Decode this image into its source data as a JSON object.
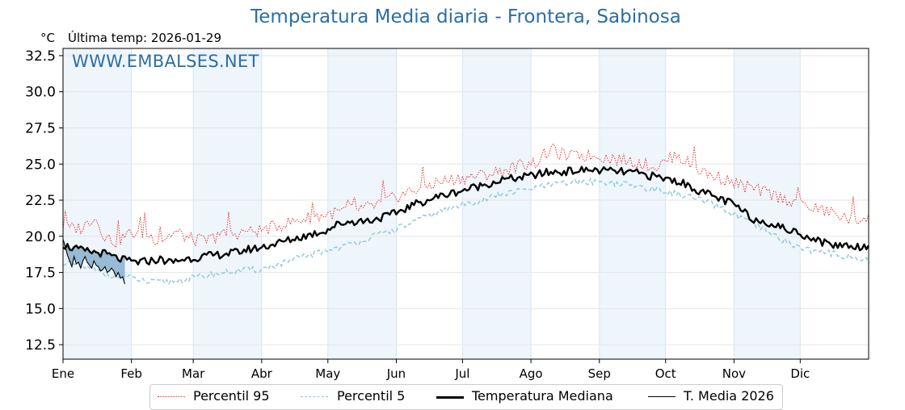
{
  "header": {
    "title": "Temperatura Media diaria - Frontera, Sabinosa",
    "unit": "°C",
    "last_temp": "Última temp: 2026-01-29",
    "watermark": "WWW.EMBALSES.NET"
  },
  "legend": {
    "p95": "Percentil 95",
    "p5": "Percentil 5",
    "median": "Temperatura Mediana",
    "current": "T. Media 2026"
  },
  "colors": {
    "p95": "#e8231f",
    "p5": "#8ec7da",
    "median": "#000000",
    "current": "#000000",
    "fill": "#7aa7c7",
    "band": "#eef5fb",
    "title": "#2a6ea6"
  },
  "chart_data": {
    "type": "line",
    "title": "Temperatura Media diaria - Frontera, Sabinosa",
    "ylabel": "°C",
    "xlabel": "",
    "ylim": [
      11.5,
      33.0
    ],
    "yticks": [
      12.5,
      15.0,
      17.5,
      20.0,
      22.5,
      25.0,
      27.5,
      30.0,
      32.5
    ],
    "ytick_labels": [
      "12.5",
      "15.0",
      "17.5",
      "20.0",
      "22.5",
      "25.0",
      "27.5",
      "30.0",
      "32.5"
    ],
    "months": [
      "Ene",
      "Feb",
      "Mar",
      "Abr",
      "May",
      "Jun",
      "Jul",
      "Ago",
      "Sep",
      "Oct",
      "Nov",
      "Dic"
    ],
    "month_start_days": [
      1,
      32,
      60,
      91,
      121,
      152,
      182,
      213,
      244,
      274,
      305,
      335
    ],
    "xlim": [
      1,
      366
    ],
    "grid": true,
    "legend_position": "bottom",
    "series": [
      {
        "name": "Percentil 95",
        "style": "dotted",
        "points": [
          [
            1,
            20.5
          ],
          [
            10,
            20.6
          ],
          [
            15,
            21.4
          ],
          [
            20,
            20.0
          ],
          [
            25,
            19.6
          ],
          [
            31,
            20.2
          ],
          [
            38,
            20.2
          ],
          [
            45,
            19.7
          ],
          [
            52,
            20.3
          ],
          [
            59,
            19.8
          ],
          [
            66,
            19.7
          ],
          [
            73,
            20.1
          ],
          [
            80,
            20.2
          ],
          [
            90,
            20.4
          ],
          [
            100,
            20.8
          ],
          [
            110,
            21.2
          ],
          [
            120,
            21.5
          ],
          [
            130,
            21.8
          ],
          [
            140,
            22.0
          ],
          [
            150,
            22.6
          ],
          [
            160,
            23.2
          ],
          [
            170,
            23.7
          ],
          [
            180,
            24.0
          ],
          [
            190,
            24.2
          ],
          [
            200,
            24.5
          ],
          [
            210,
            25.0
          ],
          [
            215,
            25.1
          ],
          [
            222,
            26.0
          ],
          [
            230,
            25.5
          ],
          [
            240,
            25.6
          ],
          [
            250,
            25.4
          ],
          [
            258,
            25.2
          ],
          [
            265,
            25.0
          ],
          [
            270,
            24.8
          ],
          [
            278,
            25.6
          ],
          [
            285,
            25.0
          ],
          [
            293,
            24.3
          ],
          [
            300,
            24.0
          ],
          [
            310,
            23.4
          ],
          [
            320,
            23.0
          ],
          [
            330,
            22.5
          ],
          [
            340,
            22.0
          ],
          [
            350,
            21.6
          ],
          [
            360,
            21.0
          ],
          [
            366,
            21.5
          ]
        ]
      },
      {
        "name": "Percentil 5",
        "style": "dashed",
        "points": [
          [
            1,
            18.2
          ],
          [
            10,
            17.9
          ],
          [
            20,
            17.4
          ],
          [
            30,
            17.2
          ],
          [
            40,
            16.8
          ],
          [
            50,
            16.9
          ],
          [
            60,
            17.1
          ],
          [
            70,
            17.4
          ],
          [
            80,
            17.6
          ],
          [
            90,
            17.7
          ],
          [
            100,
            18.1
          ],
          [
            110,
            18.6
          ],
          [
            120,
            19.0
          ],
          [
            130,
            19.4
          ],
          [
            140,
            19.9
          ],
          [
            150,
            20.4
          ],
          [
            160,
            21.0
          ],
          [
            170,
            21.6
          ],
          [
            180,
            22.1
          ],
          [
            190,
            22.5
          ],
          [
            200,
            22.9
          ],
          [
            210,
            23.2
          ],
          [
            220,
            23.5
          ],
          [
            230,
            23.7
          ],
          [
            240,
            23.8
          ],
          [
            250,
            23.7
          ],
          [
            260,
            23.5
          ],
          [
            270,
            23.2
          ],
          [
            280,
            22.9
          ],
          [
            290,
            22.5
          ],
          [
            300,
            21.9
          ],
          [
            310,
            21.1
          ],
          [
            320,
            20.3
          ],
          [
            330,
            19.5
          ],
          [
            340,
            19.0
          ],
          [
            350,
            18.8
          ],
          [
            360,
            18.5
          ],
          [
            366,
            18.3
          ]
        ]
      },
      {
        "name": "Temperatura Mediana",
        "style": "solid-thick",
        "points": [
          [
            1,
            19.4
          ],
          [
            5,
            19.2
          ],
          [
            10,
            19.0
          ],
          [
            15,
            18.9
          ],
          [
            20,
            18.8
          ],
          [
            25,
            18.5
          ],
          [
            30,
            18.3
          ],
          [
            35,
            18.2
          ],
          [
            40,
            18.3
          ],
          [
            45,
            18.4
          ],
          [
            50,
            18.2
          ],
          [
            55,
            18.4
          ],
          [
            60,
            18.5
          ],
          [
            65,
            18.6
          ],
          [
            70,
            18.7
          ],
          [
            75,
            18.8
          ],
          [
            80,
            18.9
          ],
          [
            85,
            19.1
          ],
          [
            90,
            19.2
          ],
          [
            95,
            19.4
          ],
          [
            100,
            19.6
          ],
          [
            105,
            19.8
          ],
          [
            110,
            20.0
          ],
          [
            115,
            20.2
          ],
          [
            120,
            20.4
          ],
          [
            125,
            20.8
          ],
          [
            130,
            21.0
          ],
          [
            140,
            21.1
          ],
          [
            150,
            21.5
          ],
          [
            160,
            22.2
          ],
          [
            170,
            22.7
          ],
          [
            180,
            23.1
          ],
          [
            190,
            23.5
          ],
          [
            200,
            23.9
          ],
          [
            210,
            24.1
          ],
          [
            220,
            24.4
          ],
          [
            230,
            24.5
          ],
          [
            240,
            24.6
          ],
          [
            250,
            24.5
          ],
          [
            260,
            24.4
          ],
          [
            270,
            24.1
          ],
          [
            280,
            23.8
          ],
          [
            290,
            23.1
          ],
          [
            300,
            22.5
          ],
          [
            305,
            22.2
          ],
          [
            310,
            21.6
          ],
          [
            315,
            21.1
          ],
          [
            320,
            21.0
          ],
          [
            325,
            20.7
          ],
          [
            330,
            20.4
          ],
          [
            335,
            20.2
          ],
          [
            340,
            19.9
          ],
          [
            345,
            19.6
          ],
          [
            350,
            19.4
          ],
          [
            355,
            19.4
          ],
          [
            360,
            19.3
          ],
          [
            366,
            19.3
          ]
        ]
      },
      {
        "name": "T. Media 2026",
        "style": "solid-thin",
        "points": [
          [
            1,
            19.8
          ],
          [
            2,
            19.3
          ],
          [
            3,
            18.7
          ],
          [
            4,
            18.3
          ],
          [
            5,
            17.9
          ],
          [
            6,
            18.6
          ],
          [
            7,
            18.1
          ],
          [
            8,
            18.2
          ],
          [
            9,
            17.8
          ],
          [
            10,
            18.3
          ],
          [
            11,
            18.6
          ],
          [
            12,
            18.2
          ],
          [
            13,
            18.0
          ],
          [
            14,
            17.8
          ],
          [
            15,
            18.3
          ],
          [
            16,
            18.0
          ],
          [
            17,
            17.9
          ],
          [
            18,
            17.6
          ],
          [
            19,
            17.7
          ],
          [
            20,
            17.9
          ],
          [
            21,
            17.5
          ],
          [
            22,
            17.6
          ],
          [
            23,
            17.8
          ],
          [
            24,
            17.6
          ],
          [
            25,
            17.2
          ],
          [
            26,
            17.5
          ],
          [
            27,
            17.1
          ],
          [
            28,
            17.2
          ],
          [
            29,
            16.7
          ]
        ]
      }
    ]
  }
}
